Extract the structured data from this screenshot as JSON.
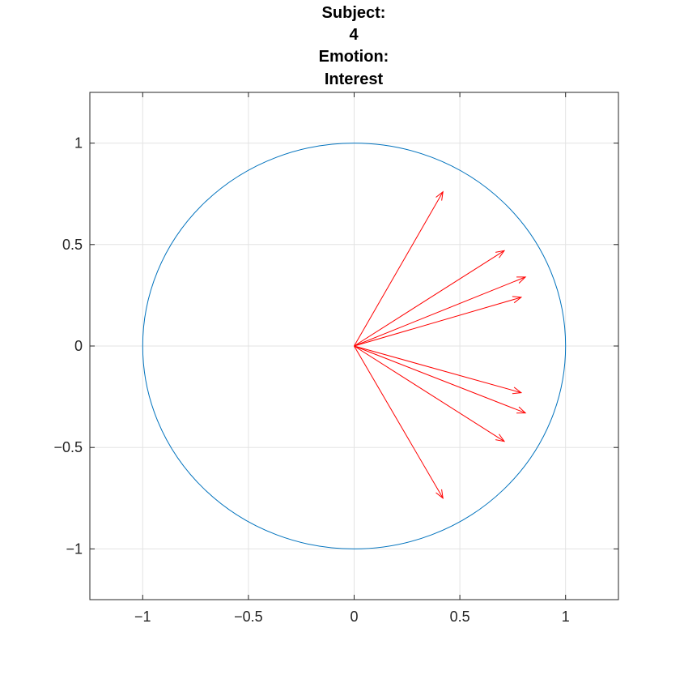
{
  "chart_data": {
    "type": "line",
    "title": [
      "Subject:",
      "4",
      "Emotion:",
      "Interest"
    ],
    "xlabel": "",
    "ylabel": "",
    "xlim": [
      -1.25,
      1.25
    ],
    "ylim": [
      -1.25,
      1.25
    ],
    "grid": true,
    "x_ticks": [
      -1,
      -0.5,
      0,
      0.5,
      1
    ],
    "y_ticks": [
      -1,
      -0.5,
      0,
      0.5,
      1
    ],
    "x_tick_labels": [
      "−1",
      "−0.5",
      "0",
      "0.5",
      "1"
    ],
    "y_tick_labels": [
      "−1",
      "−0.5",
      "0",
      "0.5",
      "1"
    ],
    "circle": {
      "cx": 0,
      "cy": 0,
      "r": 1,
      "color": "#0072BD"
    },
    "vectors": {
      "color": "#FF0000",
      "origin": [
        0,
        0
      ],
      "tips": [
        [
          0.42,
          0.76
        ],
        [
          0.71,
          0.47
        ],
        [
          0.81,
          0.34
        ],
        [
          0.79,
          0.24
        ],
        [
          0.79,
          -0.23
        ],
        [
          0.81,
          -0.33
        ],
        [
          0.71,
          -0.47
        ],
        [
          0.42,
          -0.75
        ]
      ]
    }
  }
}
